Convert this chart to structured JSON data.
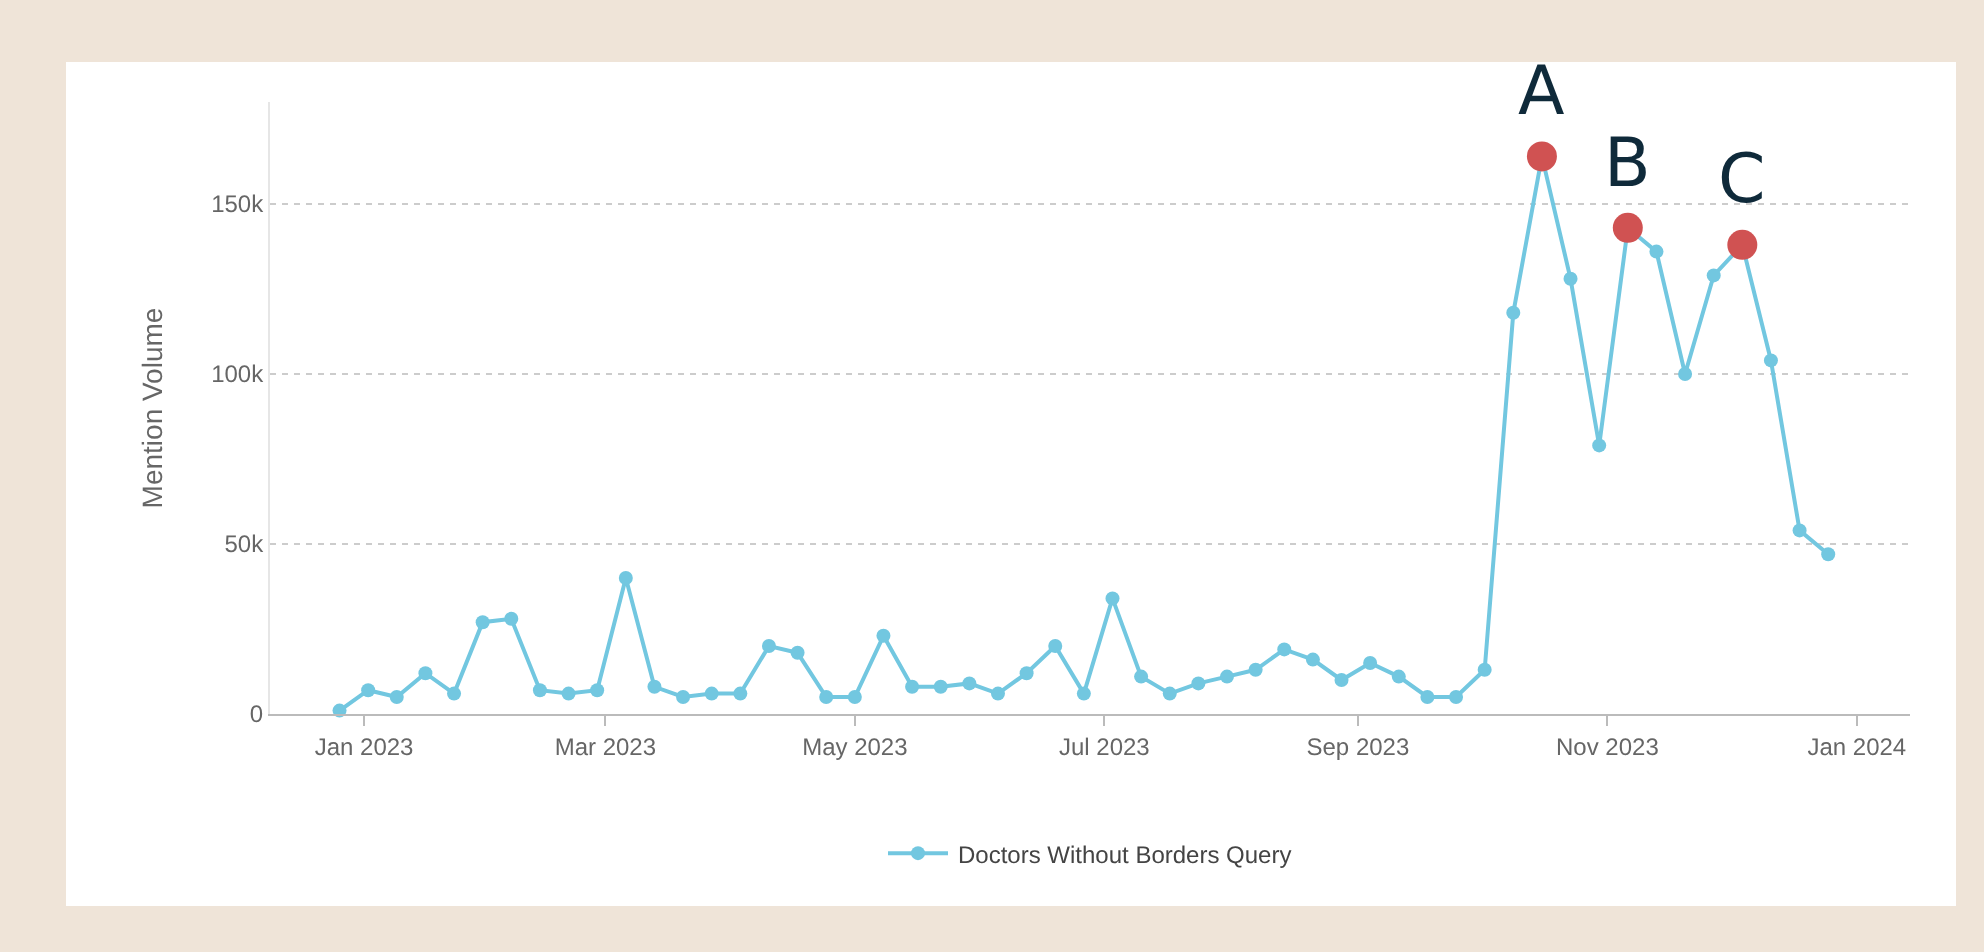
{
  "chart_data": {
    "type": "line",
    "ylabel": "Mention Volume",
    "x": [
      "2022-12-26",
      "2023-01-02",
      "2023-01-09",
      "2023-01-16",
      "2023-01-23",
      "2023-01-30",
      "2023-02-06",
      "2023-02-13",
      "2023-02-20",
      "2023-02-27",
      "2023-03-06",
      "2023-03-13",
      "2023-03-20",
      "2023-03-27",
      "2023-04-03",
      "2023-04-10",
      "2023-04-17",
      "2023-04-24",
      "2023-05-01",
      "2023-05-08",
      "2023-05-15",
      "2023-05-22",
      "2023-05-29",
      "2023-06-05",
      "2023-06-12",
      "2023-06-19",
      "2023-06-26",
      "2023-07-03",
      "2023-07-10",
      "2023-07-17",
      "2023-07-24",
      "2023-07-31",
      "2023-08-07",
      "2023-08-14",
      "2023-08-21",
      "2023-08-28",
      "2023-09-04",
      "2023-09-11",
      "2023-09-18",
      "2023-09-25",
      "2023-10-02",
      "2023-10-09",
      "2023-10-16",
      "2023-10-23",
      "2023-10-30",
      "2023-11-06",
      "2023-11-13",
      "2023-11-20",
      "2023-11-27",
      "2023-12-04",
      "2023-12-11",
      "2023-12-18",
      "2023-12-25"
    ],
    "series": [
      {
        "name": "Doctors Without Borders Query",
        "color": "#72c7e0",
        "values": [
          1000,
          7000,
          5000,
          12000,
          6000,
          27000,
          28000,
          7000,
          6000,
          7000,
          40000,
          8000,
          5000,
          6000,
          6000,
          20000,
          18000,
          5000,
          5000,
          23000,
          8000,
          8000,
          9000,
          6000,
          12000,
          20000,
          6000,
          34000,
          11000,
          6000,
          9000,
          11000,
          13000,
          19000,
          16000,
          10000,
          15000,
          11000,
          5000,
          5000,
          13000,
          118000,
          164000,
          128000,
          79000,
          143000,
          136000,
          100000,
          129000,
          138000,
          104000,
          54000,
          47000
        ]
      },
      {
        "type": "scatter",
        "color": "#d05252",
        "x": [
          "2023-10-16",
          "2023-11-06",
          "2023-12-04"
        ],
        "values": [
          164000,
          143000,
          138000
        ]
      }
    ],
    "annotations": [
      {
        "text": "A",
        "x": "2023-10-16",
        "y": 164000
      },
      {
        "text": "B",
        "x": "2023-11-06",
        "y": 143000
      },
      {
        "text": "C",
        "x": "2023-12-04",
        "y": 138000
      }
    ],
    "ylim": [
      0,
      180000
    ],
    "xlim": [
      "2022-12-09",
      "2024-01-14"
    ],
    "xticks": [
      {
        "value": "2023-01-01",
        "label": "Jan 2023"
      },
      {
        "value": "2023-03-01",
        "label": "Mar 2023"
      },
      {
        "value": "2023-05-01",
        "label": "May 2023"
      },
      {
        "value": "2023-07-01",
        "label": "Jul 2023"
      },
      {
        "value": "2023-09-01",
        "label": "Sep 2023"
      },
      {
        "value": "2023-11-01",
        "label": "Nov 2023"
      },
      {
        "value": "2024-01-01",
        "label": "Jan 2024"
      }
    ],
    "yticks": [
      {
        "value": 0,
        "label": "0"
      },
      {
        "value": 50000,
        "label": "50k"
      },
      {
        "value": 100000,
        "label": "100k"
      },
      {
        "value": 150000,
        "label": "150k"
      }
    ],
    "grid": "y",
    "legend": "bottom",
    "marker": "circle",
    "line_style": "solid"
  }
}
